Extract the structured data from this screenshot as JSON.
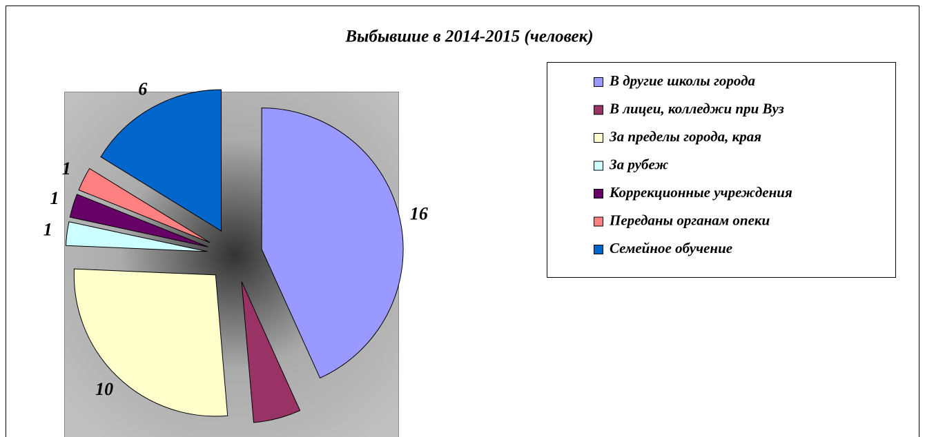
{
  "chart_data": {
    "type": "pie",
    "title": "Выбывшие в 2014-2015 (человек)",
    "categories": [
      "В другие школы города",
      "В лицеи, колледжи при Вуз",
      "За пределы города, края",
      "За рубеж",
      "Коррекционные учреждения",
      "Переданы органам опеки",
      "Семейное обучение"
    ],
    "values": [
      16,
      2,
      10,
      1,
      1,
      1,
      6
    ],
    "value_labels": [
      "16",
      null,
      "10",
      "1",
      "1",
      "1",
      "6"
    ],
    "colors": [
      "#9999ff",
      "#993366",
      "#ffffcc",
      "#ccffff",
      "#660066",
      "#ff8080",
      "#0066cc"
    ],
    "legend": "right"
  }
}
